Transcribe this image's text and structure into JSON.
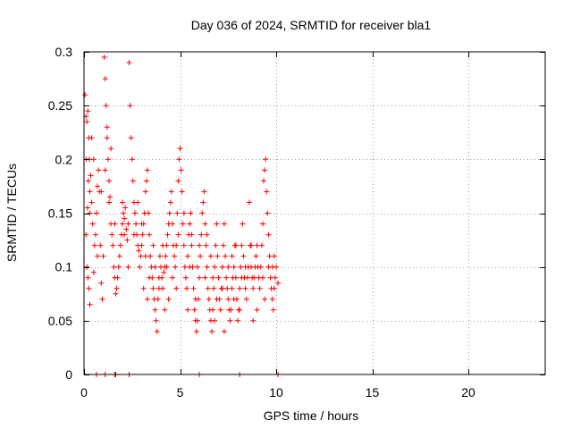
{
  "chart_data": {
    "type": "scatter",
    "title": "Day 036 of 2024, SRMTID for receiver bla1",
    "xlabel": "GPS time / hours",
    "ylabel": "SRMTID / TECUs",
    "xlim": [
      0,
      24
    ],
    "ylim": [
      0,
      0.3
    ],
    "xticks": [
      0,
      5,
      10,
      15,
      20
    ],
    "xtick_labels": [
      "0",
      "5",
      "10",
      "15",
      "20"
    ],
    "yticks": [
      0,
      0.05,
      0.1,
      0.15,
      0.2,
      0.25,
      0.3
    ],
    "ytick_labels": [
      "0",
      "0.05",
      "0.1",
      "0.15",
      "0.2",
      "0.25",
      "0.3"
    ],
    "grid": true,
    "marker": "+",
    "color": "#ff0000",
    "series": [
      {
        "name": "SRMTID",
        "points": [
          [
            0.05,
            0.26
          ],
          [
            0.1,
            0.24
          ],
          [
            0.12,
            0.2
          ],
          [
            0.15,
            0.235
          ],
          [
            0.2,
            0.245
          ],
          [
            0.25,
            0.22
          ],
          [
            0.3,
            0.17
          ],
          [
            0.1,
            0.13
          ],
          [
            0.15,
            0.1
          ],
          [
            0.2,
            0.09
          ],
          [
            0.25,
            0.08
          ],
          [
            0.3,
            0.065
          ],
          [
            0.18,
            0.155
          ],
          [
            0.22,
            0.18
          ],
          [
            0.28,
            0.2
          ],
          [
            0.35,
            0.185
          ],
          [
            0.4,
            0.16
          ],
          [
            0.45,
            0.14
          ],
          [
            0.5,
            0.095
          ],
          [
            0.55,
            0.12
          ],
          [
            0.6,
            0.13
          ],
          [
            0.65,
            0.15
          ],
          [
            0.7,
            0.175
          ],
          [
            0.75,
            0.19
          ],
          [
            0.8,
            0.17
          ],
          [
            0.85,
            0.12
          ],
          [
            0.9,
            0.085
          ],
          [
            0.95,
            0.07
          ],
          [
            1.0,
            0.11
          ],
          [
            1.05,
            0.295
          ],
          [
            1.1,
            0.275
          ],
          [
            1.15,
            0.25
          ],
          [
            1.2,
            0.22
          ],
          [
            1.25,
            0.2
          ],
          [
            1.3,
            0.18
          ],
          [
            1.35,
            0.165
          ],
          [
            1.4,
            0.14
          ],
          [
            1.45,
            0.13
          ],
          [
            1.5,
            0.12
          ],
          [
            1.55,
            0.1
          ],
          [
            1.6,
            0.09
          ],
          [
            1.65,
            0.075
          ],
          [
            1.7,
            0.08
          ],
          [
            1.75,
            0.09
          ],
          [
            1.8,
            0.1
          ],
          [
            1.85,
            0.11
          ],
          [
            1.9,
            0.12
          ],
          [
            1.95,
            0.13
          ],
          [
            2.0,
            0.14
          ],
          [
            2.05,
            0.15
          ],
          [
            2.1,
            0.145
          ],
          [
            2.15,
            0.155
          ],
          [
            2.2,
            0.135
          ],
          [
            2.25,
            0.125
          ],
          [
            2.3,
            0.14
          ],
          [
            2.35,
            0.29
          ],
          [
            2.4,
            0.25
          ],
          [
            2.45,
            0.22
          ],
          [
            2.5,
            0.2
          ],
          [
            2.55,
            0.18
          ],
          [
            2.6,
            0.16
          ],
          [
            2.65,
            0.15
          ],
          [
            2.7,
            0.14
          ],
          [
            2.75,
            0.13
          ],
          [
            2.8,
            0.12
          ],
          [
            2.85,
            0.115
          ],
          [
            2.9,
            0.1
          ],
          [
            2.95,
            0.11
          ],
          [
            3.0,
            0.12
          ],
          [
            3.05,
            0.13
          ],
          [
            3.1,
            0.14
          ],
          [
            3.15,
            0.15
          ],
          [
            3.2,
            0.17
          ],
          [
            3.25,
            0.18
          ],
          [
            3.3,
            0.19
          ],
          [
            3.35,
            0.15
          ],
          [
            3.4,
            0.13
          ],
          [
            3.45,
            0.11
          ],
          [
            3.5,
            0.1
          ],
          [
            3.55,
            0.09
          ],
          [
            3.6,
            0.08
          ],
          [
            3.65,
            0.07
          ],
          [
            3.7,
            0.06
          ],
          [
            3.75,
            0.05
          ],
          [
            3.8,
            0.04
          ],
          [
            3.85,
            0.07
          ],
          [
            3.9,
            0.09
          ],
          [
            3.95,
            0.11
          ],
          [
            4.0,
            0.1
          ],
          [
            4.05,
            0.09
          ],
          [
            4.1,
            0.08
          ],
          [
            4.15,
            0.095
          ],
          [
            4.2,
            0.1
          ],
          [
            4.25,
            0.11
          ],
          [
            4.3,
            0.12
          ],
          [
            4.35,
            0.13
          ],
          [
            4.4,
            0.14
          ],
          [
            4.45,
            0.15
          ],
          [
            4.5,
            0.16
          ],
          [
            4.55,
            0.17
          ],
          [
            4.6,
            0.14
          ],
          [
            4.65,
            0.12
          ],
          [
            4.7,
            0.11
          ],
          [
            4.75,
            0.1
          ],
          [
            4.8,
            0.12
          ],
          [
            4.85,
            0.15
          ],
          [
            4.9,
            0.18
          ],
          [
            4.95,
            0.2
          ],
          [
            5.0,
            0.21
          ],
          [
            5.05,
            0.19
          ],
          [
            5.1,
            0.17
          ],
          [
            5.15,
            0.14
          ],
          [
            5.2,
            0.12
          ],
          [
            5.25,
            0.1
          ],
          [
            5.3,
            0.09
          ],
          [
            5.35,
            0.08
          ],
          [
            5.4,
            0.11
          ],
          [
            5.45,
            0.13
          ],
          [
            5.5,
            0.14
          ],
          [
            5.55,
            0.15
          ],
          [
            5.6,
            0.12
          ],
          [
            5.65,
            0.1
          ],
          [
            5.7,
            0.08
          ],
          [
            5.75,
            0.06
          ],
          [
            5.8,
            0.05
          ],
          [
            5.85,
            0.04
          ],
          [
            5.9,
            0.05
          ],
          [
            5.95,
            0.07
          ],
          [
            6.0,
            0.09
          ],
          [
            6.05,
            0.11
          ],
          [
            6.1,
            0.13
          ],
          [
            6.15,
            0.15
          ],
          [
            6.2,
            0.16
          ],
          [
            6.25,
            0.17
          ],
          [
            6.3,
            0.14
          ],
          [
            6.35,
            0.12
          ],
          [
            6.4,
            0.1
          ],
          [
            6.45,
            0.08
          ],
          [
            6.5,
            0.07
          ],
          [
            6.55,
            0.06
          ],
          [
            6.6,
            0.05
          ],
          [
            6.65,
            0.04
          ],
          [
            6.7,
            0.06
          ],
          [
            6.75,
            0.08
          ],
          [
            6.8,
            0.1
          ],
          [
            6.85,
            0.12
          ],
          [
            6.9,
            0.14
          ],
          [
            6.95,
            0.11
          ],
          [
            7.0,
            0.09
          ],
          [
            7.05,
            0.07
          ],
          [
            7.1,
            0.06
          ],
          [
            7.15,
            0.08
          ],
          [
            7.2,
            0.1
          ],
          [
            7.25,
            0.12
          ],
          [
            7.3,
            0.14
          ],
          [
            7.35,
            0.11
          ],
          [
            7.4,
            0.09
          ],
          [
            7.45,
            0.08
          ],
          [
            7.5,
            0.07
          ],
          [
            7.55,
            0.06
          ],
          [
            7.6,
            0.05
          ],
          [
            7.65,
            0.06
          ],
          [
            7.7,
            0.08
          ],
          [
            7.75,
            0.09
          ],
          [
            7.8,
            0.1
          ],
          [
            7.85,
            0.12
          ],
          [
            7.9,
            0.09
          ],
          [
            7.95,
            0.07
          ],
          [
            8.0,
            0.05
          ],
          [
            8.05,
            0.06
          ],
          [
            8.1,
            0.08
          ],
          [
            8.15,
            0.1
          ],
          [
            8.2,
            0.12
          ],
          [
            8.25,
            0.14
          ],
          [
            8.3,
            0.11
          ],
          [
            8.35,
            0.09
          ],
          [
            8.4,
            0.08
          ],
          [
            8.45,
            0.07
          ],
          [
            8.5,
            0.09
          ],
          [
            8.55,
            0.1
          ],
          [
            8.6,
            0.16
          ],
          [
            8.65,
            0.12
          ],
          [
            8.7,
            0.1
          ],
          [
            8.75,
            0.09
          ],
          [
            8.8,
            0.08
          ],
          [
            8.85,
            0.09
          ],
          [
            8.9,
            0.1
          ],
          [
            8.95,
            0.11
          ],
          [
            9.0,
            0.12
          ],
          [
            9.05,
            0.1
          ],
          [
            9.1,
            0.09
          ],
          [
            9.15,
            0.08
          ],
          [
            9.2,
            0.1
          ],
          [
            9.25,
            0.12
          ],
          [
            9.3,
            0.14
          ],
          [
            9.35,
            0.18
          ],
          [
            9.4,
            0.19
          ],
          [
            9.45,
            0.2
          ],
          [
            9.5,
            0.17
          ],
          [
            9.55,
            0.15
          ],
          [
            9.6,
            0.13
          ],
          [
            9.65,
            0.11
          ],
          [
            9.7,
            0.09
          ],
          [
            9.75,
            0.08
          ],
          [
            9.8,
            0.07
          ],
          [
            9.85,
            0.06
          ],
          [
            9.9,
            0.08
          ],
          [
            9.95,
            0.09
          ],
          [
            10.0,
            0.1
          ],
          [
            10.1,
            0.085
          ],
          [
            0.4,
            0.22
          ],
          [
            0.5,
            0.2
          ],
          [
            0.9,
            0.17
          ],
          [
            1.2,
            0.23
          ],
          [
            1.4,
            0.21
          ],
          [
            1.3,
            0.16
          ],
          [
            2.0,
            0.16
          ],
          [
            2.1,
            0.13
          ],
          [
            2.6,
            0.13
          ],
          [
            3.0,
            0.14
          ],
          [
            3.2,
            0.11
          ],
          [
            3.4,
            0.09
          ],
          [
            3.6,
            0.12
          ],
          [
            3.9,
            0.08
          ],
          [
            4.2,
            0.06
          ],
          [
            4.4,
            0.07
          ],
          [
            4.6,
            0.09
          ],
          [
            4.9,
            0.13
          ],
          [
            5.2,
            0.15
          ],
          [
            5.5,
            0.1
          ],
          [
            5.8,
            0.07
          ],
          [
            6.0,
            0.12
          ],
          [
            6.3,
            0.09
          ],
          [
            6.6,
            0.11
          ],
          [
            6.9,
            0.07
          ],
          [
            7.2,
            0.08
          ],
          [
            7.5,
            0.1
          ],
          [
            7.8,
            0.07
          ],
          [
            8.1,
            0.06
          ],
          [
            8.4,
            0.1
          ],
          [
            8.7,
            0.12
          ],
          [
            9.0,
            0.06
          ],
          [
            9.3,
            0.09
          ],
          [
            9.6,
            0.1
          ],
          [
            9.9,
            0.11
          ],
          [
            2.3,
            0.1
          ],
          [
            2.8,
            0.16
          ],
          [
            3.3,
            0.07
          ],
          [
            3.7,
            0.1
          ],
          [
            4.1,
            0.12
          ],
          [
            4.8,
            0.08
          ],
          [
            5.4,
            0.06
          ],
          [
            5.9,
            0.1
          ],
          [
            6.4,
            0.13
          ],
          [
            6.8,
            0.05
          ],
          [
            7.3,
            0.04
          ],
          [
            7.7,
            0.11
          ],
          [
            8.2,
            0.09
          ],
          [
            8.8,
            0.05
          ],
          [
            9.4,
            0.07
          ],
          [
            9.8,
            0.1
          ],
          [
            1.6,
            0.14
          ],
          [
            1.1,
            0.19
          ],
          [
            0.7,
            0.11
          ],
          [
            0.3,
            0.15
          ],
          [
            3.1,
            0.08
          ],
          [
            4.3,
            0.1
          ],
          [
            5.6,
            0.13
          ],
          [
            6.7,
            0.09
          ],
          [
            7.9,
            0.12
          ],
          [
            0.65,
            0
          ],
          [
            1.1,
            0
          ],
          [
            1.6,
            0
          ],
          [
            1.65,
            0
          ],
          [
            2.35,
            0
          ],
          [
            6.0,
            0
          ],
          [
            8.1,
            0
          ],
          [
            10.1,
            0
          ]
        ]
      }
    ]
  }
}
